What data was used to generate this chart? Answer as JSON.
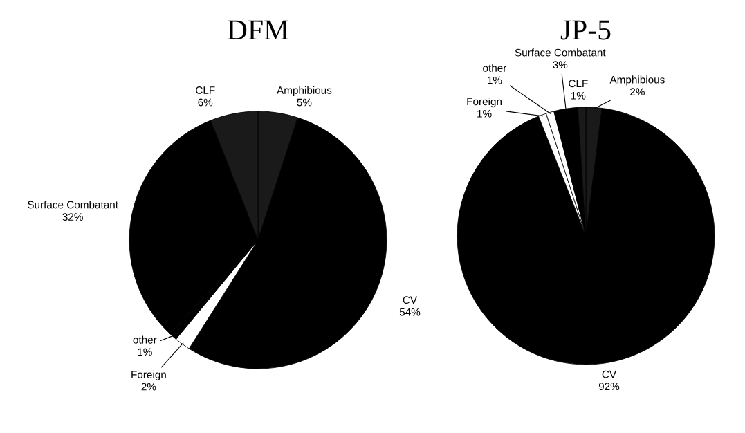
{
  "chart_data": [
    {
      "type": "pie",
      "title": "DFM",
      "categories": [
        "Amphibious",
        "CV",
        "Foreign",
        "other",
        "Surface Combatant",
        "CLF"
      ],
      "values": [
        5,
        54,
        2,
        1,
        32,
        6
      ],
      "value_labels": [
        "5%",
        "54%",
        "2%",
        "1%",
        "32%",
        "6%"
      ],
      "colors": [
        "#1a1a1a",
        "#000000",
        "#ffffff",
        "#000000",
        "#000000",
        "#1a1a1a"
      ]
    },
    {
      "type": "pie",
      "title": "JP-5",
      "categories": [
        "Amphibious",
        "CV",
        "Foreign",
        "other",
        "Surface Combatant",
        "CLF"
      ],
      "values": [
        2,
        92,
        1,
        1,
        3,
        1
      ],
      "value_labels": [
        "2%",
        "92%",
        "1%",
        "1%",
        "3%",
        "1%"
      ],
      "colors": [
        "#1a1a1a",
        "#000000",
        "#ffffff",
        "#ffffff",
        "#000000",
        "#1a1a1a"
      ]
    }
  ]
}
